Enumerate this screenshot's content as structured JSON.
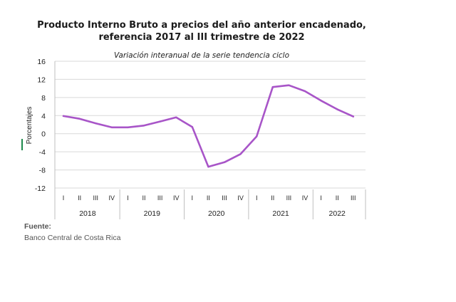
{
  "chart_data": {
    "type": "line",
    "title": "Producto Interno Bruto a precios del año anterior encadenado, referencia 2017 al III trimestre de 2022",
    "title_lines": [
      "Producto Interno Bruto a precios del año anterior encadenado,",
      "referencia 2017 al III trimestre de 2022"
    ],
    "subtitle": "Variación interanual de la serie tendencia ciclo",
    "ylabel": "Porcentajes",
    "xlabel": "",
    "ylim": [
      -12,
      16
    ],
    "yticks": [
      -12,
      -8,
      -4,
      0,
      4,
      8,
      12,
      16
    ],
    "grid": true,
    "line_color": "#a855c8",
    "quarter_labels": [
      "I",
      "II",
      "III",
      "IV",
      "I",
      "II",
      "III",
      "IV",
      "I",
      "II",
      "III",
      "IV",
      "I",
      "II",
      "III",
      "IV",
      "I",
      "II",
      "III"
    ],
    "years": [
      {
        "label": "2018",
        "quarters": 4
      },
      {
        "label": "2019",
        "quarters": 4
      },
      {
        "label": "2020",
        "quarters": 4
      },
      {
        "label": "2021",
        "quarters": 4
      },
      {
        "label": "2022",
        "quarters": 3
      }
    ],
    "series": [
      {
        "values": [
          3.9,
          3.3,
          2.3,
          1.4,
          1.4,
          1.8,
          2.7,
          3.6,
          1.5,
          -7.3,
          -6.3,
          -4.5,
          -0.6,
          10.3,
          10.7,
          9.4,
          7.3,
          5.4,
          3.8
        ]
      }
    ]
  },
  "source": {
    "label": "Fuente:",
    "text": "Banco Central de Costa Rica"
  }
}
